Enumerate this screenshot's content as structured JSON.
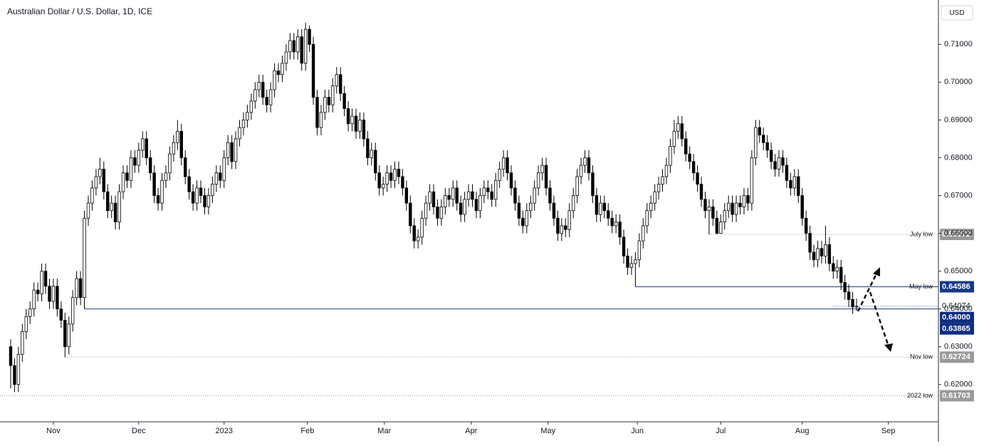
{
  "chart_data": {
    "type": "candlestick",
    "title": "Australian Dollar / U.S. Dollar, 1D, ICE",
    "currency": "USD",
    "up_color": "#ffffff",
    "down_color": "#000000",
    "grid": false,
    "xlim": [
      -2.75,
      239.1
    ],
    "ylim": [
      0.61014,
      0.72174
    ],
    "yticks": [
      {
        "value": 0.62,
        "label": "0.62000"
      },
      {
        "value": 0.63,
        "label": "0.63000"
      },
      {
        "value": 0.64,
        "label": "0.64000"
      },
      {
        "value": 0.65,
        "label": "0.65000"
      },
      {
        "value": 0.66,
        "label": "0.66000"
      },
      {
        "value": 0.67,
        "label": "0.67000"
      },
      {
        "value": 0.68,
        "label": "0.68000"
      },
      {
        "value": 0.69,
        "label": "0.69000"
      },
      {
        "value": 0.7,
        "label": "0.70000"
      },
      {
        "value": 0.71,
        "label": "0.71000"
      }
    ],
    "xticks": [
      {
        "value": 11,
        "label": "Nov"
      },
      {
        "value": 33,
        "label": "Dec"
      },
      {
        "value": 55,
        "label": "2023"
      },
      {
        "value": 76.5,
        "label": "Feb"
      },
      {
        "value": 96.3,
        "label": "Mar"
      },
      {
        "value": 118.7,
        "label": "Apr"
      },
      {
        "value": 138.5,
        "label": "May"
      },
      {
        "value": 161.5,
        "label": "Jun"
      },
      {
        "value": 183,
        "label": "Jul"
      },
      {
        "value": 204,
        "label": "Aug"
      },
      {
        "value": 226.2,
        "label": "Sep"
      }
    ],
    "open": [
      0.63,
      0.625,
      0.62,
      0.628,
      0.634,
      0.638,
      0.64,
      0.645,
      0.644,
      0.65,
      0.646,
      0.642,
      0.646,
      0.64,
      0.637,
      0.63,
      0.636,
      0.643,
      0.648,
      0.643,
      0.664,
      0.668,
      0.672,
      0.675,
      0.677,
      0.671,
      0.666,
      0.668,
      0.663,
      0.671,
      0.676,
      0.674,
      0.68,
      0.678,
      0.682,
      0.685,
      0.68,
      0.676,
      0.67,
      0.668,
      0.674,
      0.676,
      0.681,
      0.684,
      0.687,
      0.68,
      0.675,
      0.671,
      0.668,
      0.672,
      0.67,
      0.667,
      0.67,
      0.673,
      0.676,
      0.674,
      0.68,
      0.684,
      0.679,
      0.685,
      0.688,
      0.69,
      0.692,
      0.695,
      0.698,
      0.7,
      0.696,
      0.694,
      0.698,
      0.703,
      0.702,
      0.705,
      0.708,
      0.711,
      0.708,
      0.712,
      0.705,
      0.714,
      0.71,
      0.696,
      0.688,
      0.692,
      0.696,
      0.694,
      0.699,
      0.702,
      0.697,
      0.693,
      0.689,
      0.691,
      0.687,
      0.69,
      0.685,
      0.68,
      0.682,
      0.676,
      0.672,
      0.673,
      0.676,
      0.674,
      0.677,
      0.675,
      0.672,
      0.668,
      0.662,
      0.658,
      0.659,
      0.664,
      0.668,
      0.671,
      0.667,
      0.664,
      0.667,
      0.67,
      0.669,
      0.672,
      0.668,
      0.665,
      0.669,
      0.671,
      0.669,
      0.666,
      0.67,
      0.672,
      0.671,
      0.669,
      0.674,
      0.677,
      0.68,
      0.676,
      0.672,
      0.668,
      0.664,
      0.662,
      0.666,
      0.668,
      0.672,
      0.676,
      0.678,
      0.672,
      0.668,
      0.664,
      0.66,
      0.662,
      0.661,
      0.666,
      0.67,
      0.675,
      0.678,
      0.68,
      0.676,
      0.67,
      0.665,
      0.668,
      0.666,
      0.664,
      0.662,
      0.663,
      0.659,
      0.654,
      0.651,
      0.652,
      0.653,
      0.658,
      0.662,
      0.666,
      0.668,
      0.671,
      0.673,
      0.675,
      0.678,
      0.683,
      0.687,
      0.689,
      0.685,
      0.681,
      0.679,
      0.676,
      0.673,
      0.669,
      0.666,
      0.667,
      0.664,
      0.66,
      0.663,
      0.666,
      0.668,
      0.665,
      0.668,
      0.667,
      0.67,
      0.668,
      0.68,
      0.688,
      0.686,
      0.684,
      0.682,
      0.679,
      0.677,
      0.68,
      0.678,
      0.674,
      0.672,
      0.675,
      0.67,
      0.664,
      0.66,
      0.655,
      0.653,
      0.656,
      0.654,
      0.657,
      0.652,
      0.65,
      0.651,
      0.647,
      0.6445,
      0.6425,
      0.6405
    ],
    "high": [
      0.632,
      0.627,
      0.63,
      0.636,
      0.64,
      0.642,
      0.647,
      0.647,
      0.652,
      0.652,
      0.648,
      0.648,
      0.648,
      0.642,
      0.639,
      0.638,
      0.645,
      0.65,
      0.65,
      0.666,
      0.67,
      0.674,
      0.677,
      0.68,
      0.679,
      0.673,
      0.67,
      0.67,
      0.673,
      0.678,
      0.678,
      0.682,
      0.682,
      0.684,
      0.687,
      0.687,
      0.682,
      0.678,
      0.672,
      0.676,
      0.678,
      0.683,
      0.686,
      0.69,
      0.689,
      0.682,
      0.677,
      0.673,
      0.674,
      0.674,
      0.672,
      0.672,
      0.675,
      0.678,
      0.678,
      0.682,
      0.686,
      0.686,
      0.687,
      0.69,
      0.692,
      0.694,
      0.697,
      0.7,
      0.702,
      0.702,
      0.698,
      0.7,
      0.705,
      0.705,
      0.707,
      0.71,
      0.713,
      0.713,
      0.714,
      0.714,
      0.7157,
      0.715,
      0.712,
      0.698,
      0.694,
      0.698,
      0.698,
      0.701,
      0.704,
      0.704,
      0.699,
      0.695,
      0.693,
      0.693,
      0.692,
      0.692,
      0.687,
      0.684,
      0.684,
      0.678,
      0.675,
      0.678,
      0.678,
      0.679,
      0.679,
      0.677,
      0.674,
      0.67,
      0.664,
      0.661,
      0.666,
      0.67,
      0.673,
      0.673,
      0.669,
      0.669,
      0.672,
      0.672,
      0.674,
      0.674,
      0.67,
      0.671,
      0.673,
      0.673,
      0.671,
      0.672,
      0.674,
      0.674,
      0.673,
      0.676,
      0.679,
      0.682,
      0.682,
      0.678,
      0.674,
      0.67,
      0.666,
      0.668,
      0.67,
      0.674,
      0.678,
      0.68,
      0.68,
      0.674,
      0.67,
      0.666,
      0.664,
      0.664,
      0.668,
      0.672,
      0.677,
      0.68,
      0.682,
      0.682,
      0.678,
      0.672,
      0.67,
      0.67,
      0.668,
      0.666,
      0.665,
      0.665,
      0.661,
      0.656,
      0.654,
      0.655,
      0.66,
      0.664,
      0.668,
      0.67,
      0.673,
      0.675,
      0.677,
      0.68,
      0.685,
      0.69,
      0.691,
      0.691,
      0.687,
      0.683,
      0.681,
      0.678,
      0.675,
      0.671,
      0.669,
      0.669,
      0.666,
      0.665,
      0.668,
      0.67,
      0.67,
      0.67,
      0.67,
      0.672,
      0.672,
      0.682,
      0.69,
      0.69,
      0.688,
      0.686,
      0.684,
      0.681,
      0.682,
      0.682,
      0.68,
      0.676,
      0.677,
      0.677,
      0.672,
      0.666,
      0.662,
      0.657,
      0.658,
      0.658,
      0.662,
      0.659,
      0.654,
      0.653,
      0.653,
      0.649,
      0.6465,
      0.6445,
      0.6427
    ],
    "low": [
      0.619,
      0.618,
      0.618,
      0.626,
      0.632,
      0.636,
      0.638,
      0.642,
      0.642,
      0.644,
      0.64,
      0.64,
      0.638,
      0.635,
      0.6272,
      0.628,
      0.634,
      0.641,
      0.641,
      0.64,
      0.662,
      0.666,
      0.67,
      0.673,
      0.669,
      0.664,
      0.664,
      0.661,
      0.661,
      0.669,
      0.672,
      0.672,
      0.676,
      0.676,
      0.68,
      0.678,
      0.674,
      0.668,
      0.666,
      0.666,
      0.672,
      0.674,
      0.679,
      0.682,
      0.678,
      0.673,
      0.669,
      0.666,
      0.666,
      0.668,
      0.665,
      0.665,
      0.668,
      0.671,
      0.672,
      0.672,
      0.678,
      0.677,
      0.677,
      0.683,
      0.686,
      0.688,
      0.69,
      0.693,
      0.696,
      0.694,
      0.692,
      0.692,
      0.696,
      0.7,
      0.7,
      0.703,
      0.706,
      0.706,
      0.706,
      0.703,
      0.703,
      0.708,
      0.694,
      0.686,
      0.686,
      0.69,
      0.692,
      0.692,
      0.697,
      0.695,
      0.691,
      0.687,
      0.687,
      0.685,
      0.685,
      0.683,
      0.678,
      0.678,
      0.674,
      0.67,
      0.67,
      0.671,
      0.672,
      0.672,
      0.673,
      0.67,
      0.666,
      0.66,
      0.656,
      0.656,
      0.657,
      0.662,
      0.666,
      0.665,
      0.662,
      0.662,
      0.665,
      0.667,
      0.667,
      0.666,
      0.663,
      0.663,
      0.667,
      0.667,
      0.664,
      0.664,
      0.668,
      0.669,
      0.667,
      0.667,
      0.672,
      0.675,
      0.674,
      0.67,
      0.666,
      0.662,
      0.66,
      0.66,
      0.664,
      0.666,
      0.67,
      0.674,
      0.67,
      0.666,
      0.662,
      0.658,
      0.658,
      0.659,
      0.659,
      0.664,
      0.668,
      0.673,
      0.676,
      0.674,
      0.668,
      0.663,
      0.663,
      0.664,
      0.662,
      0.66,
      0.66,
      0.657,
      0.652,
      0.649,
      0.649,
      0.6459,
      0.651,
      0.656,
      0.66,
      0.664,
      0.666,
      0.669,
      0.671,
      0.673,
      0.676,
      0.681,
      0.685,
      0.683,
      0.679,
      0.677,
      0.674,
      0.671,
      0.667,
      0.664,
      0.6597,
      0.662,
      0.6598,
      0.66,
      0.661,
      0.664,
      0.663,
      0.663,
      0.665,
      0.665,
      0.666,
      0.666,
      0.678,
      0.684,
      0.682,
      0.68,
      0.677,
      0.675,
      0.675,
      0.676,
      0.672,
      0.67,
      0.67,
      0.668,
      0.662,
      0.658,
      0.653,
      0.651,
      0.651,
      0.652,
      0.652,
      0.65,
      0.648,
      0.648,
      0.645,
      0.6425,
      0.6405,
      0.63865,
      0.6395
    ],
    "close": [
      0.625,
      0.62,
      0.628,
      0.634,
      0.638,
      0.64,
      0.645,
      0.644,
      0.65,
      0.646,
      0.642,
      0.646,
      0.64,
      0.637,
      0.63,
      0.636,
      0.643,
      0.648,
      0.643,
      0.664,
      0.668,
      0.672,
      0.675,
      0.677,
      0.671,
      0.666,
      0.668,
      0.663,
      0.671,
      0.676,
      0.674,
      0.68,
      0.678,
      0.682,
      0.685,
      0.68,
      0.676,
      0.67,
      0.668,
      0.674,
      0.676,
      0.681,
      0.684,
      0.687,
      0.68,
      0.675,
      0.671,
      0.668,
      0.672,
      0.67,
      0.667,
      0.67,
      0.673,
      0.676,
      0.674,
      0.68,
      0.684,
      0.679,
      0.685,
      0.688,
      0.69,
      0.692,
      0.695,
      0.698,
      0.7,
      0.696,
      0.694,
      0.698,
      0.703,
      0.702,
      0.705,
      0.708,
      0.711,
      0.708,
      0.712,
      0.705,
      0.714,
      0.71,
      0.696,
      0.688,
      0.692,
      0.696,
      0.694,
      0.699,
      0.702,
      0.697,
      0.693,
      0.689,
      0.691,
      0.687,
      0.69,
      0.685,
      0.68,
      0.682,
      0.676,
      0.672,
      0.673,
      0.676,
      0.674,
      0.677,
      0.675,
      0.672,
      0.668,
      0.662,
      0.658,
      0.659,
      0.664,
      0.668,
      0.671,
      0.667,
      0.664,
      0.667,
      0.67,
      0.669,
      0.672,
      0.668,
      0.665,
      0.669,
      0.671,
      0.669,
      0.666,
      0.67,
      0.672,
      0.671,
      0.669,
      0.674,
      0.677,
      0.68,
      0.676,
      0.672,
      0.668,
      0.664,
      0.662,
      0.666,
      0.668,
      0.672,
      0.676,
      0.678,
      0.672,
      0.668,
      0.664,
      0.66,
      0.662,
      0.661,
      0.666,
      0.67,
      0.675,
      0.678,
      0.68,
      0.676,
      0.67,
      0.665,
      0.668,
      0.666,
      0.664,
      0.662,
      0.663,
      0.659,
      0.654,
      0.651,
      0.652,
      0.653,
      0.658,
      0.662,
      0.666,
      0.668,
      0.671,
      0.673,
      0.675,
      0.678,
      0.683,
      0.687,
      0.689,
      0.685,
      0.681,
      0.679,
      0.676,
      0.673,
      0.669,
      0.666,
      0.667,
      0.664,
      0.66,
      0.663,
      0.666,
      0.668,
      0.665,
      0.668,
      0.667,
      0.67,
      0.668,
      0.68,
      0.688,
      0.686,
      0.684,
      0.682,
      0.679,
      0.677,
      0.68,
      0.678,
      0.674,
      0.672,
      0.675,
      0.67,
      0.664,
      0.66,
      0.655,
      0.653,
      0.656,
      0.654,
      0.657,
      0.652,
      0.65,
      0.651,
      0.647,
      0.6445,
      0.6425,
      0.6405,
      0.6407
    ],
    "levels": [
      {
        "name": "July low",
        "value": 0.65972,
        "from": 180,
        "style": "dotted",
        "color": "#9e9e9e",
        "tag_color": "#9a9a9a"
      },
      {
        "name": "May low",
        "value": 0.64586,
        "from": 161,
        "style": "solid",
        "color": "#1e3f7a",
        "tag_color": "#15398c"
      },
      {
        "value": 0.64074,
        "from": 212,
        "style": "dotted",
        "color": "#4a5fd0"
      },
      {
        "value": 0.64,
        "label": "0.64000",
        "from": 19,
        "style": "solid",
        "color": "#1e3f7a",
        "tag_color": "#0e2d7f"
      },
      {
        "value": 0.63865,
        "tag_color": "#0e2d7f"
      },
      {
        "name": "Nov low",
        "value": 0.62724,
        "from": 14,
        "style": "dotted",
        "color": "#9e9e9e",
        "tag_color": "#9a9a9a"
      },
      {
        "name": "2022 low",
        "value": 0.61703,
        "style": "dotted",
        "color": "#9e9e9e",
        "tag_color": "#9a9a9a"
      }
    ]
  }
}
